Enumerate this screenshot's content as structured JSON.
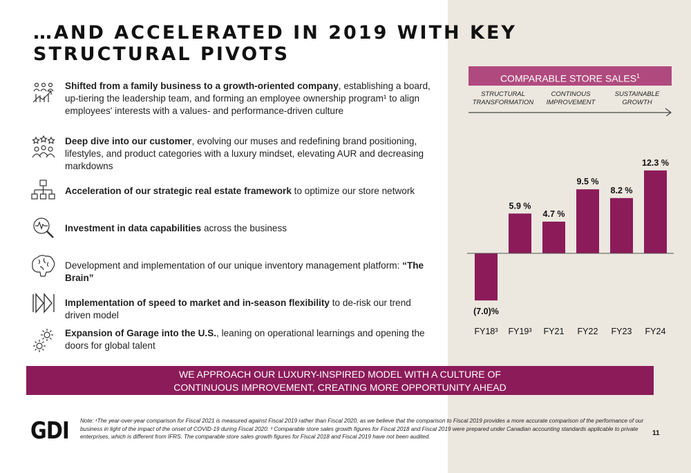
{
  "title": "…AND ACCELERATED IN 2019 WITH KEY STRUCTURAL PIVOTS",
  "bullets": [
    {
      "icon": "people-growth-icon",
      "bold": "Shifted from a family business to a growth-oriented company",
      "rest": ", establishing a board, up-tiering the leadership team, and forming an employee ownership program¹ to align employees' interests with a values- and performance-driven culture"
    },
    {
      "icon": "customer-stars-icon",
      "bold": "Deep dive into our customer",
      "rest": ", evolving our muses and redefining brand positioning, lifestyles, and product categories with a luxury mindset, elevating AUR and decreasing markdowns"
    },
    {
      "icon": "org-chart-icon",
      "bold": "Acceleration of our strategic real estate framework",
      "rest": " to optimize our store network"
    },
    {
      "icon": "data-magnifier-icon",
      "bold": "Investment in data capabilities",
      "rest": " across the business"
    },
    {
      "icon": "brain-icon",
      "lead": "Development and implementation of our unique inventory management platform: ",
      "bold": "“The Brain”",
      "rest": ""
    },
    {
      "icon": "fast-forward-icon",
      "bold": "Implementation of speed to market and in-season flexibility",
      "rest": " to de-risk our trend driven model"
    },
    {
      "icon": "gears-icon",
      "bold": "Expansion of Garage into the U.S.",
      "rest": ", leaning on operational learnings and opening the doors for global talent"
    }
  ],
  "panel": {
    "header": "COMPARABLE STORE SALES",
    "header_sup": "1",
    "phases": [
      {
        "line1": "STRUCTURAL",
        "line2": "TRANSFORMATION"
      },
      {
        "line1": "CONTINOUS",
        "line2": "IMPROVEMENT"
      },
      {
        "line1": "SUSTAINABLE",
        "line2": "GROWTH"
      }
    ]
  },
  "chart_data": {
    "type": "bar",
    "categories": [
      "FY18³",
      "FY19³",
      "FY21",
      "FY22",
      "FY23",
      "FY24"
    ],
    "values": [
      -7.0,
      5.9,
      4.7,
      9.5,
      8.2,
      12.3
    ],
    "data_labels": [
      "(7.0)%",
      "5.9 %",
      "4.7 %",
      "9.5 %",
      "8.2 %",
      "12.3 %"
    ],
    "title": "",
    "xlabel": "",
    "ylabel": "",
    "ylim": [
      -7.5,
      13
    ],
    "grid": false,
    "colors": {
      "bar": "#8c1b5a",
      "baseline": "#555555"
    }
  },
  "banner": {
    "line1": "WE APPROACH OUR LUXURY-INSPIRED MODEL WITH A CULTURE OF",
    "line2": "CONTINUOUS IMPROVEMENT, CREATING MORE OPPORTUNITY AHEAD"
  },
  "footer": {
    "logo": "GDI",
    "note": "Note: ¹The year-over-year comparison for Fiscal 2021 is measured against Fiscal 2019 rather than Fiscal 2020, as we believe that the comparison to Fiscal 2019 provides a more accurate comparison of the performance of our business in light of the impact of the onset of COVID-19 during Fiscal 2020. ³ Comparable store sales growth figures for Fiscal 2018 and Fiscal 2019 were prepared under Canadian accounting standards applicable to private enterprises, which is different from IFRS. The comparable store sales growth figures for Fiscal 2018 and Fiscal 2019 have not been audited.",
    "page": "11"
  }
}
